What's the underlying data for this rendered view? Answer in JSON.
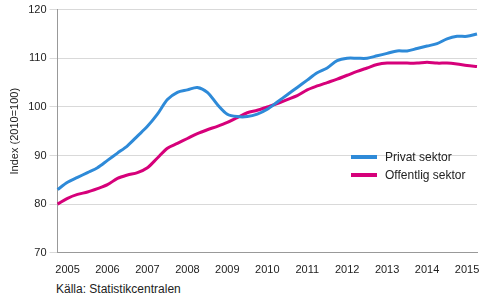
{
  "chart_data": {
    "type": "line",
    "y_label": "Index (2010=100)",
    "source": "Källa: Statistikcentralen",
    "categories": [
      null,
      "2005",
      null,
      null,
      null,
      "2006",
      null,
      null,
      null,
      "2007",
      null,
      null,
      null,
      "2008",
      null,
      null,
      null,
      "2009",
      null,
      null,
      null,
      "2010",
      null,
      null,
      null,
      "2011",
      null,
      null,
      null,
      "2012",
      null,
      null,
      null,
      "2013",
      null,
      null,
      null,
      "2014",
      null,
      null,
      null,
      "2015",
      null
    ],
    "series": [
      {
        "name": "Privat sektor",
        "color": "#2e8ad8",
        "values": [
          83,
          84.5,
          85.5,
          86.5,
          87.5,
          89,
          90.5,
          92,
          94,
          96,
          98.5,
          101.5,
          103,
          103.5,
          104,
          103,
          100.5,
          98.5,
          98,
          98,
          98.5,
          99.5,
          101,
          102.5,
          104,
          105.5,
          107,
          108,
          109.5,
          110,
          110,
          110,
          110.5,
          111,
          111.5,
          111.5,
          112,
          112.5,
          113,
          114,
          114.5,
          114.5,
          115
        ]
      },
      {
        "name": "Offentlig sektor",
        "color": "#d6007a",
        "values": [
          80,
          81.2,
          82,
          82.5,
          83.2,
          84,
          85.3,
          86,
          86.5,
          87.5,
          89.5,
          91.5,
          92.5,
          93.5,
          94.5,
          95.3,
          96,
          96.8,
          97.8,
          98.8,
          99.3,
          100,
          100.7,
          101.5,
          102.3,
          103.5,
          104.3,
          105,
          105.7,
          106.5,
          107.3,
          108,
          108.7,
          109,
          109,
          109,
          109,
          109.2,
          109,
          109,
          108.8,
          108.5,
          108.3
        ]
      }
    ],
    "ylim": [
      70,
      120
    ],
    "yticks": [
      70,
      80,
      90,
      100,
      110,
      120
    ],
    "grid": true,
    "legend": "right"
  }
}
